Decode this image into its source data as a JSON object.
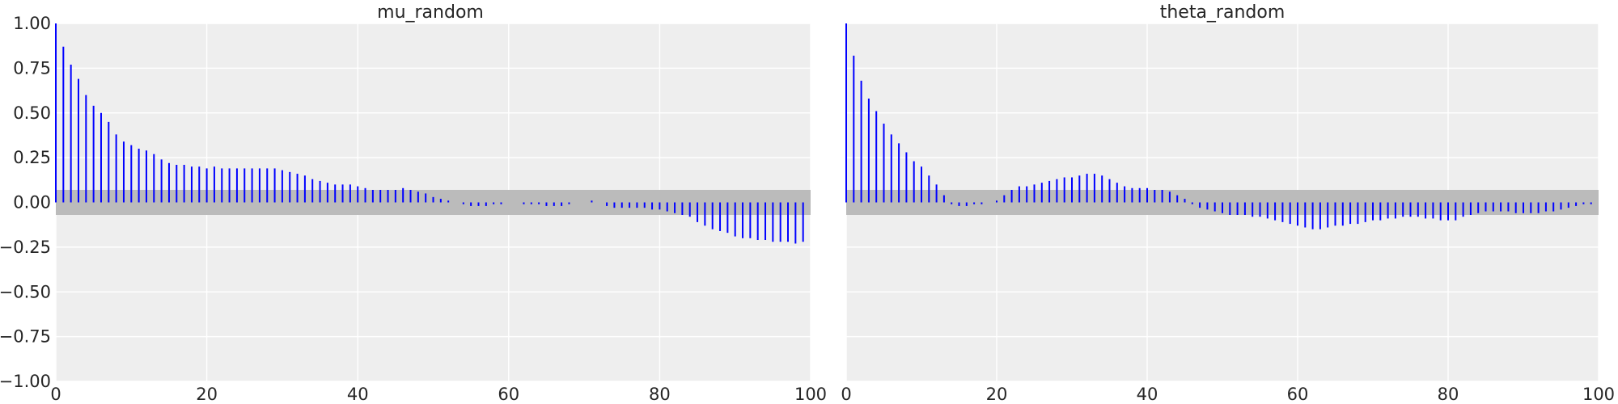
{
  "chart_data": [
    {
      "type": "bar",
      "subtype": "autocorrelation-stem",
      "title": "mu_random",
      "xlabel": "",
      "ylabel": "",
      "xlim": [
        0,
        100
      ],
      "ylim": [
        -1.0,
        1.0
      ],
      "x_ticks": [
        "0",
        "20",
        "40",
        "60",
        "80",
        "100"
      ],
      "y_ticks": [
        "1.00",
        "0.75",
        "0.50",
        "0.25",
        "0.00",
        "−0.25",
        "−0.50",
        "−0.75",
        "−1.00"
      ],
      "grid": true,
      "confidence_band": [
        -0.07,
        0.07
      ],
      "lags": [
        0,
        1,
        2,
        3,
        4,
        5,
        6,
        7,
        8,
        9,
        10,
        11,
        12,
        13,
        14,
        15,
        16,
        17,
        18,
        19,
        20,
        21,
        22,
        23,
        24,
        25,
        26,
        27,
        28,
        29,
        30,
        31,
        32,
        33,
        34,
        35,
        36,
        37,
        38,
        39,
        40,
        41,
        42,
        43,
        44,
        45,
        46,
        47,
        48,
        49,
        50,
        51,
        52,
        53,
        54,
        55,
        56,
        57,
        58,
        59,
        60,
        61,
        62,
        63,
        64,
        65,
        66,
        67,
        68,
        69,
        70,
        71,
        72,
        73,
        74,
        75,
        76,
        77,
        78,
        79,
        80,
        81,
        82,
        83,
        84,
        85,
        86,
        87,
        88,
        89,
        90,
        91,
        92,
        93,
        94,
        95,
        96,
        97,
        98,
        99
      ],
      "values": [
        1.0,
        0.87,
        0.77,
        0.69,
        0.6,
        0.54,
        0.5,
        0.45,
        0.38,
        0.34,
        0.32,
        0.3,
        0.29,
        0.27,
        0.24,
        0.22,
        0.21,
        0.21,
        0.2,
        0.2,
        0.19,
        0.2,
        0.19,
        0.19,
        0.19,
        0.19,
        0.19,
        0.19,
        0.19,
        0.19,
        0.18,
        0.17,
        0.16,
        0.15,
        0.13,
        0.12,
        0.11,
        0.1,
        0.1,
        0.1,
        0.09,
        0.08,
        0.07,
        0.07,
        0.07,
        0.07,
        0.08,
        0.07,
        0.06,
        0.05,
        0.03,
        0.02,
        0.01,
        0.0,
        -0.01,
        -0.02,
        -0.02,
        -0.02,
        -0.01,
        -0.01,
        0.0,
        0.0,
        -0.01,
        -0.01,
        -0.01,
        -0.02,
        -0.02,
        -0.02,
        -0.01,
        0.0,
        0.0,
        0.01,
        0.0,
        -0.02,
        -0.03,
        -0.03,
        -0.03,
        -0.03,
        -0.03,
        -0.04,
        -0.04,
        -0.05,
        -0.06,
        -0.07,
        -0.08,
        -0.11,
        -0.13,
        -0.15,
        -0.16,
        -0.17,
        -0.19,
        -0.2,
        -0.2,
        -0.21,
        -0.21,
        -0.22,
        -0.22,
        -0.22,
        -0.23,
        -0.22
      ]
    },
    {
      "type": "bar",
      "subtype": "autocorrelation-stem",
      "title": "theta_random",
      "xlabel": "",
      "ylabel": "",
      "xlim": [
        0,
        100
      ],
      "ylim": [
        -1.0,
        1.0
      ],
      "x_ticks": [
        "0",
        "20",
        "40",
        "60",
        "80",
        "100"
      ],
      "y_ticks": [],
      "grid": true,
      "confidence_band": [
        -0.07,
        0.07
      ],
      "lags": [
        0,
        1,
        2,
        3,
        4,
        5,
        6,
        7,
        8,
        9,
        10,
        11,
        12,
        13,
        14,
        15,
        16,
        17,
        18,
        19,
        20,
        21,
        22,
        23,
        24,
        25,
        26,
        27,
        28,
        29,
        30,
        31,
        32,
        33,
        34,
        35,
        36,
        37,
        38,
        39,
        40,
        41,
        42,
        43,
        44,
        45,
        46,
        47,
        48,
        49,
        50,
        51,
        52,
        53,
        54,
        55,
        56,
        57,
        58,
        59,
        60,
        61,
        62,
        63,
        64,
        65,
        66,
        67,
        68,
        69,
        70,
        71,
        72,
        73,
        74,
        75,
        76,
        77,
        78,
        79,
        80,
        81,
        82,
        83,
        84,
        85,
        86,
        87,
        88,
        89,
        90,
        91,
        92,
        93,
        94,
        95,
        96,
        97,
        98,
        99
      ],
      "values": [
        1.0,
        0.82,
        0.68,
        0.58,
        0.51,
        0.44,
        0.38,
        0.33,
        0.28,
        0.23,
        0.2,
        0.15,
        0.1,
        0.04,
        -0.01,
        -0.02,
        -0.02,
        -0.01,
        -0.01,
        0.0,
        0.01,
        0.04,
        0.07,
        0.09,
        0.09,
        0.1,
        0.11,
        0.12,
        0.13,
        0.14,
        0.14,
        0.15,
        0.16,
        0.16,
        0.15,
        0.13,
        0.11,
        0.09,
        0.08,
        0.08,
        0.08,
        0.07,
        0.07,
        0.06,
        0.04,
        0.02,
        -0.01,
        -0.03,
        -0.04,
        -0.05,
        -0.06,
        -0.07,
        -0.07,
        -0.07,
        -0.08,
        -0.08,
        -0.09,
        -0.1,
        -0.11,
        -0.12,
        -0.13,
        -0.14,
        -0.15,
        -0.15,
        -0.14,
        -0.13,
        -0.13,
        -0.12,
        -0.12,
        -0.11,
        -0.1,
        -0.1,
        -0.09,
        -0.09,
        -0.08,
        -0.08,
        -0.08,
        -0.09,
        -0.09,
        -0.1,
        -0.1,
        -0.1,
        -0.08,
        -0.07,
        -0.06,
        -0.05,
        -0.05,
        -0.05,
        -0.05,
        -0.06,
        -0.06,
        -0.06,
        -0.06,
        -0.05,
        -0.05,
        -0.04,
        -0.03,
        -0.02,
        -0.01,
        -0.01
      ]
    }
  ],
  "colors": {
    "stem": "#0000ff",
    "band": "#bbbbbb",
    "plot_background": "#eeeeee",
    "grid": "#ffffff"
  }
}
